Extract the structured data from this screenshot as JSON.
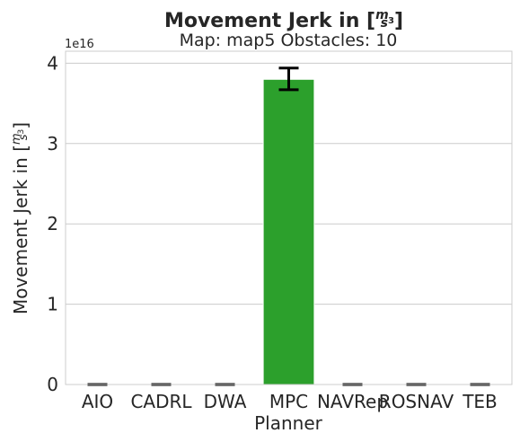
{
  "chart_data": {
    "type": "bar",
    "title": "Movement Jerk in [m/s³]",
    "title_prefix": "Movement Jerk in [",
    "title_suffix": "]",
    "unit_num": "m",
    "unit_den": "s",
    "unit_exp": "3",
    "subtitle": "Map: map5 Obstacles: 10",
    "xlabel": "Planner",
    "ylabel": "Movement Jerk in [m/s³]",
    "ylabel_prefix": "Movement Jerk in [",
    "ylabel_suffix": "]",
    "offset_text": "1e16",
    "categories": [
      "AIO",
      "CADRL",
      "DWA",
      "MPC",
      "NAVRep",
      "ROSNAV",
      "TEB"
    ],
    "values": [
      0,
      0,
      0,
      3.8,
      0,
      0,
      0
    ],
    "errors_low": [
      0,
      0,
      0,
      3.67,
      0,
      0,
      0
    ],
    "errors_high": [
      0,
      0,
      0,
      3.94,
      0,
      0,
      0
    ],
    "value_scale": "1e16",
    "ylim": [
      0,
      4.15
    ],
    "yticks": [
      0,
      1,
      2,
      3,
      4
    ],
    "grid": "horizontal",
    "colors": [
      "#1f77b4",
      "#ff7f0e",
      "#8c564b",
      "#2ca02c",
      "#9467bd",
      "#e377c2",
      "#7f7f7f"
    ]
  }
}
